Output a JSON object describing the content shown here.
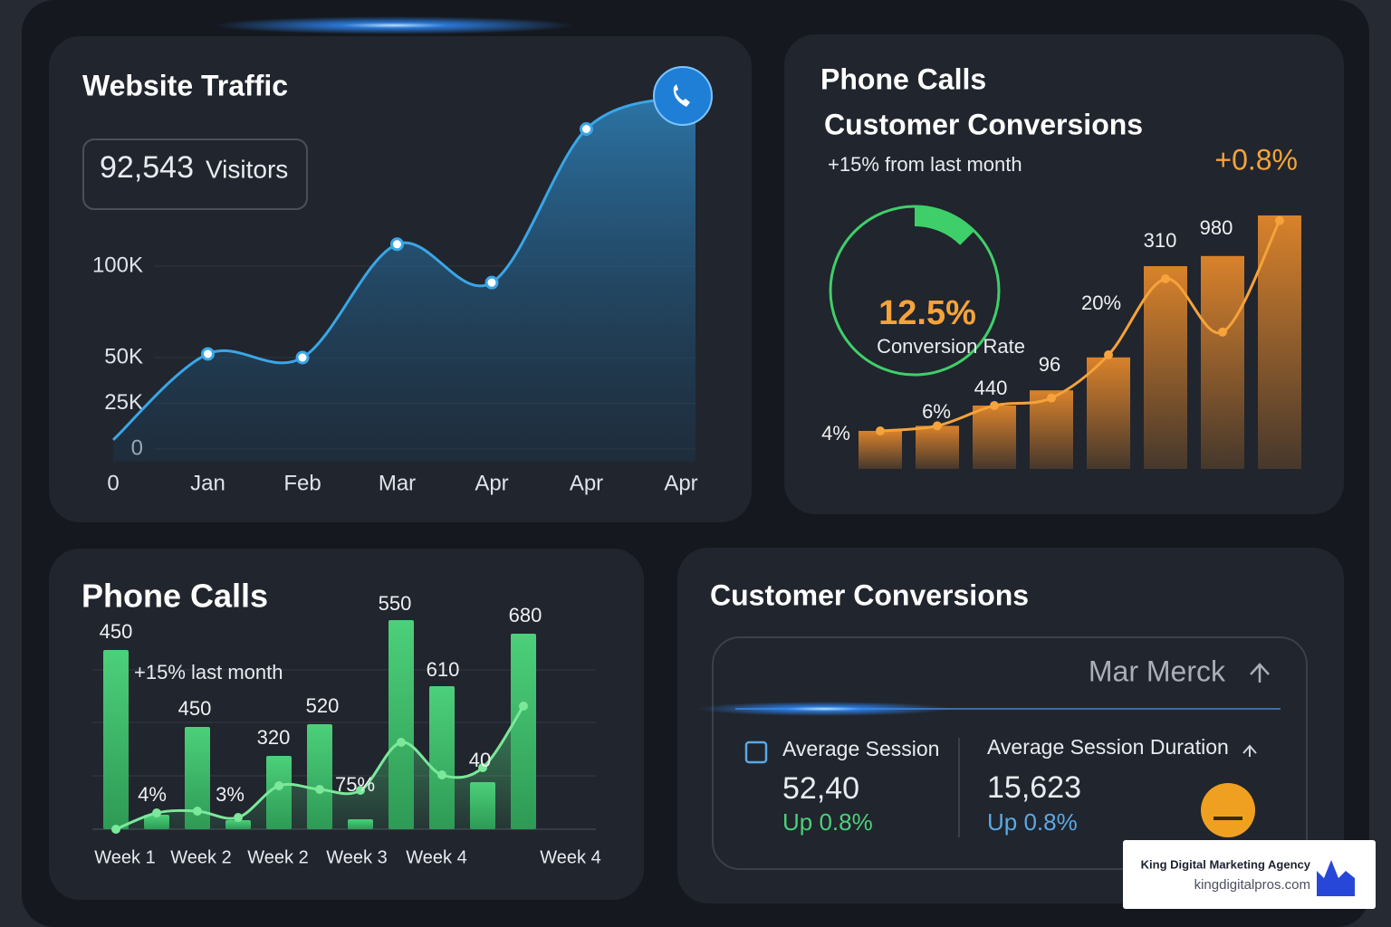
{
  "chart_data": [
    {
      "type": "area",
      "title": "Website Traffic",
      "visitors": "92,543",
      "visitors_label": "Visitors",
      "categories": [
        "0",
        "Jan",
        "Feb",
        "Mar",
        "Apr",
        "Apr",
        "Apr"
      ],
      "values": [
        5000,
        52000,
        50000,
        112000,
        91000,
        175000,
        193000
      ],
      "color": "#3aa6e6",
      "ylim": [
        0,
        200000
      ],
      "yticks": [
        {
          "value": 0,
          "label": "0"
        },
        {
          "value": 25000,
          "label": "25K"
        },
        {
          "value": 50000,
          "label": "50K"
        },
        {
          "value": 100000,
          "label": "100K"
        }
      ]
    },
    {
      "type": "bar-line",
      "title": "Phone Calls",
      "subtitle": "Customer Conversions",
      "note": "+15% from last month",
      "annotation": "+0.8%",
      "gauge": {
        "value": 12.5,
        "value_label": "12.5%",
        "label": "Conversion Rate",
        "color": "#3fcf6a"
      },
      "bar_values": [
        15,
        17,
        25,
        31,
        44,
        80,
        84,
        100
      ],
      "line_values": [
        15,
        17,
        25,
        28,
        45,
        75,
        54,
        98
      ],
      "bar_color": "#d9822b",
      "line_color": "#f5a33a",
      "ylim": [
        0,
        100
      ],
      "annotations": [
        "4%",
        "6%",
        "440",
        "96",
        "20%",
        "310",
        "980"
      ]
    },
    {
      "type": "bar-line",
      "title": "Phone Calls",
      "subtitle": "+15% last month",
      "bar_values": [
        198,
        16,
        113,
        10,
        81,
        116,
        11,
        231,
        158,
        52,
        216
      ],
      "line_values": [
        0,
        18,
        20,
        13,
        48,
        44,
        43,
        96,
        60,
        68,
        136
      ],
      "bar_color": "#4cd07a",
      "line_color": "#7be89a",
      "ylim": [
        0,
        240
      ],
      "annotations": [
        "450",
        "4%",
        "450",
        "3%",
        "320",
        "520",
        "75%",
        "550",
        "610",
        "40",
        "680"
      ],
      "x_labels": [
        "Week 1",
        "Week 2",
        "Week 2",
        "Week 3",
        "Week 4",
        "Week 4"
      ]
    }
  ],
  "kpi_card": {
    "title": "Customer Conversions",
    "selector": "Mar Merck",
    "left": {
      "label": "Average Session",
      "value": "52,40",
      "change": "Up 0.8%"
    },
    "right": {
      "label": "Average Session Duration",
      "value": "15,623",
      "change": "Up 0.8%"
    }
  },
  "branding": {
    "name": "King Digital Marketing Agency",
    "url": "kingdigitalpros.com"
  }
}
